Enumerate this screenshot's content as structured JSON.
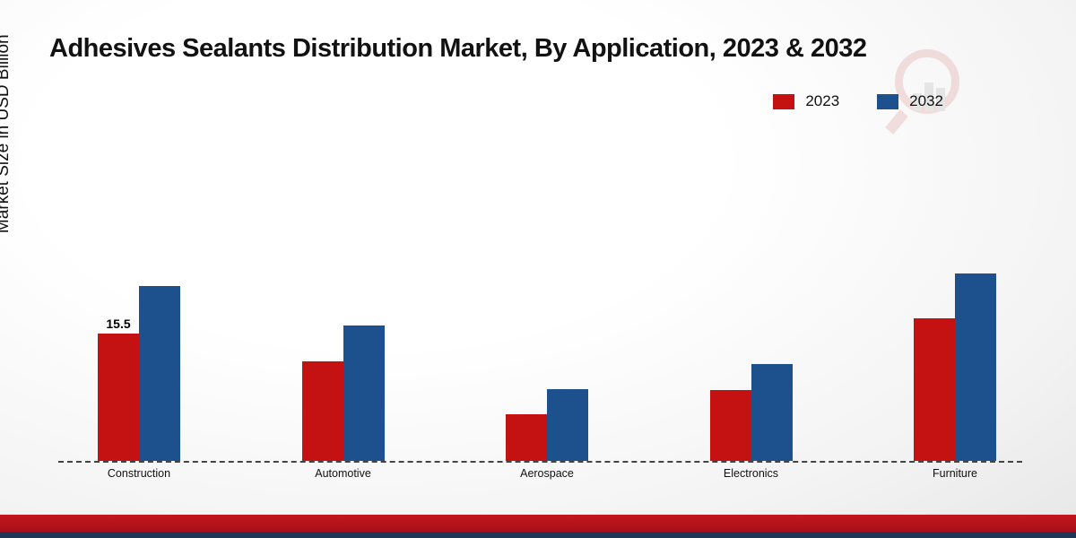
{
  "page": {
    "title": "Adhesives Sealants Distribution Market, By Application, 2023 & 2032",
    "y_axis_label": "Market Size in USD Billion"
  },
  "legend": {
    "items": [
      {
        "label": "2023",
        "color": "#c41111"
      },
      {
        "label": "2032",
        "color": "#1c518e"
      }
    ]
  },
  "colors": {
    "series_2023": "#c41111",
    "series_2032": "#1c518e",
    "footer_red": "#c41620",
    "footer_navy": "#203656",
    "baseline": "#444444"
  },
  "chart_data": {
    "type": "bar",
    "title": "Adhesives Sealants Distribution Market, By Application, 2023 & 2032",
    "xlabel": "",
    "ylabel": "Market Size in USD Billion",
    "categories": [
      "Construction",
      "Automotive",
      "Aerospace",
      "Electronics",
      "Furniture"
    ],
    "series": [
      {
        "name": "2023",
        "color": "#c41111",
        "values": [
          15.5,
          12.1,
          5.7,
          8.6,
          17.4
        ]
      },
      {
        "name": "2032",
        "color": "#1c518e",
        "values": [
          21.3,
          16.5,
          8.7,
          11.8,
          22.8
        ]
      }
    ],
    "data_labels": [
      {
        "series": "2023",
        "category": "Construction",
        "text": "15.5"
      }
    ],
    "ylim": [
      0,
      25
    ],
    "grid": false,
    "baseline_style": "dashed",
    "legend_position": "top-right"
  },
  "watermark": {
    "name": "analytics-magnifier-logo"
  }
}
